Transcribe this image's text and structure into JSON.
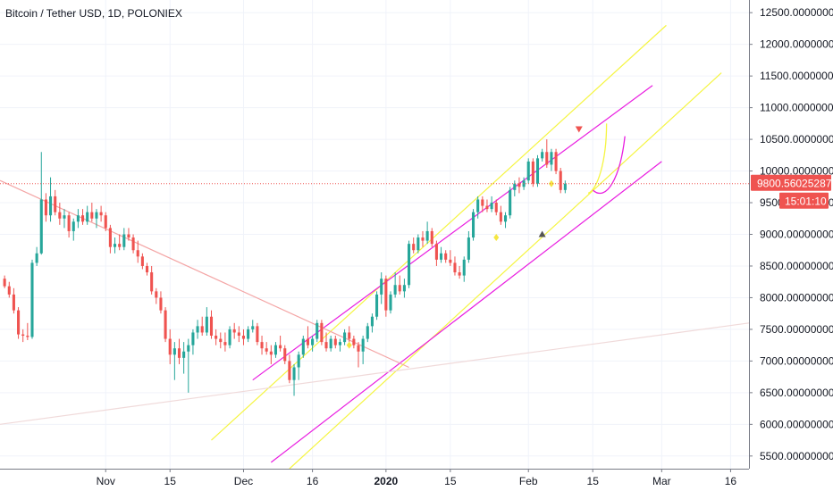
{
  "title": "Bitcoin / Tether USD, 1D, POLONIEX",
  "colors": {
    "up": "#26a69a",
    "down": "#ef5350",
    "channel_magenta": "#e91ee0",
    "channel_yellow": "#f5f542",
    "trend_pink": "#f4a6a6",
    "grid": "#f0f3fa",
    "price_line": "#ef5350",
    "axis_text": "#131722"
  },
  "chart_data": {
    "type": "candlestick",
    "title": "Bitcoin / Tether USD, 1D, POLONIEX",
    "ylim": [
      5300,
      12700
    ],
    "y_ticks": [
      5500,
      6000,
      6500,
      7000,
      7500,
      8000,
      8500,
      9000,
      9500,
      10000,
      10500,
      11000,
      11500,
      12000,
      12500
    ],
    "y_tick_labels": [
      "5500.00000000",
      "6000.00000000",
      "6500.00000000",
      "7000.00000000",
      "7500.00000000",
      "8000.00000000",
      "8500.00000000",
      "9000.00000000",
      "9500.00000000",
      "10000.00000000",
      "10500.00000000",
      "11000.00000000",
      "11500.00000000",
      "12000.00000000",
      "12500.00000000"
    ],
    "x_range": [
      "2019-10-09",
      "2020-03-20"
    ],
    "x_ticks": [
      {
        "date": "2019-11-01",
        "label": "Nov",
        "bold": false
      },
      {
        "date": "2019-11-15",
        "label": "15",
        "bold": false
      },
      {
        "date": "2019-12-01",
        "label": "Dec",
        "bold": false
      },
      {
        "date": "2019-12-16",
        "label": "16",
        "bold": false
      },
      {
        "date": "2020-01-01",
        "label": "2020",
        "bold": true
      },
      {
        "date": "2020-01-15",
        "label": "15",
        "bold": false
      },
      {
        "date": "2020-02-01",
        "label": "Feb",
        "bold": false
      },
      {
        "date": "2020-02-15",
        "label": "15",
        "bold": false
      },
      {
        "date": "2020-03-01",
        "label": "Mar",
        "bold": false
      },
      {
        "date": "2020-03-16",
        "label": "16",
        "bold": false
      }
    ],
    "last_price": 9800.56025287,
    "last_price_label": "9800.56025287",
    "countdown_label": "15:01:10",
    "start_date": "2019-10-10",
    "candles": [
      [
        8300,
        8350,
        8150,
        8180
      ],
      [
        8180,
        8250,
        8000,
        8050
      ],
      [
        8050,
        8150,
        7750,
        7800
      ],
      [
        7800,
        7850,
        7350,
        7420
      ],
      [
        7420,
        7500,
        7300,
        7400
      ],
      [
        7400,
        7600,
        7330,
        7380
      ],
      [
        7380,
        8600,
        7350,
        8550
      ],
      [
        8550,
        8800,
        8500,
        8700
      ],
      [
        8700,
        10300,
        8680,
        9550
      ],
      [
        9550,
        9650,
        9200,
        9300
      ],
      [
        9300,
        9900,
        9200,
        9600
      ],
      [
        9600,
        9700,
        9300,
        9350
      ],
      [
        9350,
        9500,
        9150,
        9250
      ],
      [
        9250,
        9400,
        9100,
        9300
      ],
      [
        9300,
        9350,
        8950,
        9050
      ],
      [
        9050,
        9250,
        8900,
        9200
      ],
      [
        9200,
        9400,
        9100,
        9300
      ],
      [
        9300,
        9400,
        9150,
        9200
      ],
      [
        9200,
        9450,
        9150,
        9350
      ],
      [
        9350,
        9500,
        9200,
        9250
      ],
      [
        9250,
        9400,
        9100,
        9350
      ],
      [
        9350,
        9450,
        9200,
        9300
      ],
      [
        9300,
        9350,
        9050,
        9100
      ],
      [
        9100,
        9150,
        8700,
        8800
      ],
      [
        8800,
        8950,
        8700,
        8850
      ],
      [
        8850,
        9000,
        8750,
        8800
      ],
      [
        8800,
        9100,
        8750,
        9000
      ],
      [
        9000,
        9100,
        8900,
        8950
      ],
      [
        8950,
        9000,
        8700,
        8750
      ],
      [
        8750,
        8900,
        8550,
        8650
      ],
      [
        8650,
        8700,
        8450,
        8500
      ],
      [
        8500,
        8550,
        8350,
        8400
      ],
      [
        8400,
        8500,
        8050,
        8100
      ],
      [
        8100,
        8150,
        7900,
        8000
      ],
      [
        8000,
        8100,
        7750,
        7800
      ],
      [
        7800,
        7850,
        7300,
        7350
      ],
      [
        7350,
        7500,
        6950,
        7100
      ],
      [
        7100,
        7300,
        6700,
        7200
      ],
      [
        7200,
        7350,
        6950,
        7050
      ],
      [
        7050,
        7300,
        6800,
        7150
      ],
      [
        7150,
        7350,
        6500,
        7250
      ],
      [
        7250,
        7500,
        7100,
        7450
      ],
      [
        7450,
        7650,
        7350,
        7550
      ],
      [
        7550,
        7700,
        7400,
        7450
      ],
      [
        7450,
        7850,
        7400,
        7700
      ],
      [
        7700,
        7800,
        7350,
        7400
      ],
      [
        7400,
        7500,
        7250,
        7350
      ],
      [
        7350,
        7450,
        7200,
        7300
      ],
      [
        7300,
        7450,
        7150,
        7250
      ],
      [
        7250,
        7550,
        7200,
        7500
      ],
      [
        7500,
        7600,
        7350,
        7450
      ],
      [
        7450,
        7550,
        7300,
        7400
      ],
      [
        7400,
        7500,
        7250,
        7350
      ],
      [
        7350,
        7550,
        7300,
        7500
      ],
      [
        7500,
        7650,
        7450,
        7550
      ],
      [
        7550,
        7600,
        7250,
        7300
      ],
      [
        7300,
        7400,
        7100,
        7200
      ],
      [
        7200,
        7300,
        7100,
        7150
      ],
      [
        7150,
        7250,
        6950,
        7100
      ],
      [
        7100,
        7300,
        7050,
        7250
      ],
      [
        7250,
        7400,
        7150,
        7200
      ],
      [
        7200,
        7250,
        6950,
        7000
      ],
      [
        7000,
        7100,
        6650,
        6700
      ],
      [
        6700,
        6950,
        6450,
        6900
      ],
      [
        6900,
        7150,
        6700,
        7100
      ],
      [
        7100,
        7400,
        7050,
        7350
      ],
      [
        7350,
        7550,
        7200,
        7250
      ],
      [
        7250,
        7400,
        7150,
        7350
      ],
      [
        7350,
        7650,
        7300,
        7600
      ],
      [
        7600,
        7650,
        7250,
        7300
      ],
      [
        7300,
        7450,
        7150,
        7200
      ],
      [
        7200,
        7400,
        7150,
        7350
      ],
      [
        7350,
        7400,
        7200,
        7250
      ],
      [
        7250,
        7350,
        7150,
        7300
      ],
      [
        7300,
        7500,
        7250,
        7450
      ],
      [
        7450,
        7550,
        7300,
        7350
      ],
      [
        7350,
        7400,
        7200,
        7250
      ],
      [
        7250,
        7300,
        6900,
        7150
      ],
      [
        7150,
        7400,
        6950,
        7350
      ],
      [
        7350,
        7600,
        7300,
        7550
      ],
      [
        7550,
        7750,
        7450,
        7700
      ],
      [
        7700,
        8100,
        7650,
        8050
      ],
      [
        8050,
        8400,
        7900,
        8300
      ],
      [
        8300,
        8350,
        7700,
        7800
      ],
      [
        7800,
        8100,
        7750,
        8050
      ],
      [
        8050,
        8400,
        8000,
        8200
      ],
      [
        8200,
        8350,
        8050,
        8100
      ],
      [
        8100,
        8300,
        8000,
        8200
      ],
      [
        8200,
        8900,
        8150,
        8850
      ],
      [
        8850,
        8950,
        8700,
        8750
      ],
      [
        8750,
        9000,
        8700,
        8950
      ],
      [
        8950,
        9050,
        8800,
        8900
      ],
      [
        8900,
        9200,
        8850,
        9050
      ],
      [
        9050,
        9100,
        8800,
        8850
      ],
      [
        8850,
        8900,
        8500,
        8600
      ],
      [
        8600,
        8800,
        8550,
        8700
      ],
      [
        8700,
        8750,
        8550,
        8600
      ],
      [
        8600,
        8750,
        8500,
        8550
      ],
      [
        8550,
        8650,
        8350,
        8400
      ],
      [
        8400,
        8500,
        8300,
        8350
      ],
      [
        8350,
        8650,
        8250,
        8600
      ],
      [
        8600,
        9050,
        8550,
        8950
      ],
      [
        8950,
        9400,
        8900,
        9350
      ],
      [
        9350,
        9600,
        9250,
        9550
      ],
      [
        9550,
        9600,
        9350,
        9450
      ],
      [
        9450,
        9550,
        9350,
        9400
      ],
      [
        9400,
        9600,
        9350,
        9500
      ],
      [
        9500,
        9550,
        9300,
        9350
      ],
      [
        9350,
        9450,
        9150,
        9200
      ],
      [
        9200,
        9350,
        9100,
        9300
      ],
      [
        9300,
        9750,
        9250,
        9700
      ],
      [
        9700,
        9850,
        9600,
        9800
      ],
      [
        9800,
        9900,
        9650,
        9750
      ],
      [
        9750,
        9900,
        9700,
        9850
      ],
      [
        9850,
        10200,
        9800,
        10150
      ],
      [
        10150,
        10200,
        9750,
        9800
      ],
      [
        9800,
        10250,
        9750,
        10200
      ],
      [
        10200,
        10350,
        10150,
        10300
      ],
      [
        10300,
        10500,
        10050,
        10100
      ],
      [
        10100,
        10350,
        10000,
        10300
      ],
      [
        10300,
        10350,
        9950,
        10000
      ],
      [
        10000,
        10050,
        9650,
        9700
      ],
      [
        9700,
        9850,
        9650,
        9800
      ]
    ],
    "lines": [
      {
        "name": "",
        "color": "#f5f542",
        "start": [
          "2019-11-24",
          5750
        ],
        "end": [
          "2020-03-02",
          12300
        ]
      },
      {
        "name": "",
        "color": "#f5f542",
        "start": [
          "2019-12-11",
          5300
        ],
        "end": [
          "2020-03-14",
          11550
        ]
      },
      {
        "name": "",
        "color": "#e91ee0",
        "start": [
          "2019-12-03",
          6700
        ],
        "end": [
          "2020-02-28",
          11350
        ]
      },
      {
        "name": "",
        "color": "#e91ee0",
        "start": [
          "2019-12-07",
          5400
        ],
        "end": [
          "2020-03-01",
          10150
        ]
      },
      {
        "name": "",
        "color": "#f4a6a6",
        "start": [
          "2019-10-09",
          9850
        ],
        "end": [
          "2020-01-06",
          6900
        ]
      },
      {
        "name": "",
        "color": "#f0dada",
        "start": [
          "2019-10-09",
          6000
        ],
        "end": [
          "2020-03-20",
          7600
        ]
      }
    ],
    "markers": [
      {
        "date": "2020-02-12",
        "price": 10650,
        "shape": "triangle-down",
        "color": "#ef5350"
      },
      {
        "date": "2020-02-04",
        "price": 9000,
        "shape": "triangle-up",
        "color": "#555555"
      },
      {
        "date": "2020-02-06",
        "price": 9800,
        "shape": "diamond",
        "color": "#f5e642"
      },
      {
        "date": "2019-12-24",
        "price": 7250,
        "shape": "diamond",
        "color": "#f5e642"
      },
      {
        "date": "2020-01-25",
        "price": 8950,
        "shape": "diamond",
        "color": "#f5e642"
      }
    ],
    "curves": [
      {
        "color": "#e91ee0",
        "points": [
          [
            "2020-02-15",
            9700
          ],
          [
            "2020-02-18",
            9500
          ],
          [
            "2020-02-21",
            9900
          ],
          [
            "2020-02-22",
            10550
          ]
        ]
      },
      {
        "color": "#f5f542",
        "points": [
          [
            "2020-02-14",
            9650
          ],
          [
            "2020-02-16",
            9700
          ],
          [
            "2020-02-18",
            10150
          ],
          [
            "2020-02-18",
            10750
          ]
        ]
      }
    ]
  }
}
